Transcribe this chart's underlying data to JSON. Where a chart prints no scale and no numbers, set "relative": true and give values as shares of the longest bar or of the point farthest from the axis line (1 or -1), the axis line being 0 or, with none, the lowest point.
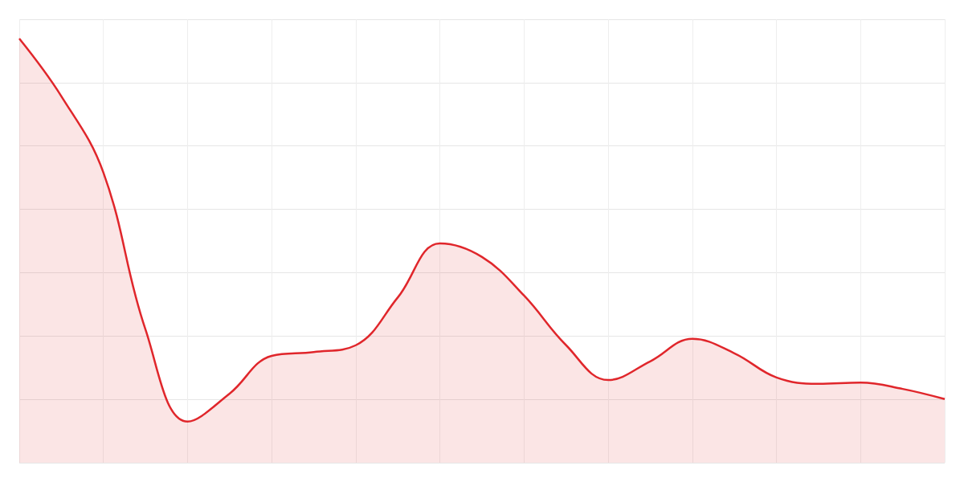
{
  "chart_data": {
    "type": "area",
    "relative": true,
    "grid": true,
    "color": "#e0262b",
    "marker": "none",
    "categories": [
      null,
      null,
      null,
      null,
      null,
      null,
      null,
      null,
      null,
      null,
      null,
      null,
      null,
      null,
      null,
      null,
      null,
      null,
      null,
      null,
      null,
      null,
      null
    ],
    "values": [
      1.0,
      0.864,
      0.684,
      0.314,
      0.097,
      0.163,
      0.252,
      0.261,
      0.277,
      0.39,
      0.517,
      0.485,
      0.394,
      0.277,
      0.195,
      0.239,
      0.292,
      0.258,
      0.201,
      0.186,
      0.189,
      0.174,
      0.15
    ]
  }
}
